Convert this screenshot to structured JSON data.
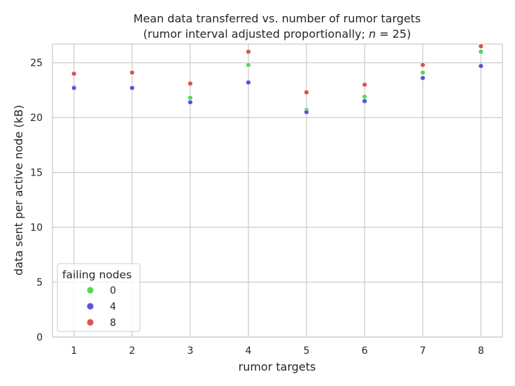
{
  "chart_data": {
    "type": "scatter",
    "title_line1": "Mean data transferred vs. number of rumor targets",
    "title_line2_pre": "(rumor interval adjusted proportionally; ",
    "title_line2_var": "n",
    "title_line2_post": " = 25)",
    "xlabel": "rumor targets",
    "ylabel": "data sent per active node (kB)",
    "xlim": [
      0.63,
      8.37
    ],
    "ylim": [
      0,
      26.7
    ],
    "x_ticks": [
      1,
      2,
      3,
      4,
      5,
      6,
      7,
      8
    ],
    "y_ticks": [
      0,
      5,
      10,
      15,
      20,
      25
    ],
    "grid": true,
    "legend": {
      "title": "failing nodes",
      "placement": "lower-left"
    },
    "x": [
      1,
      2,
      3,
      4,
      5,
      6,
      7,
      8
    ],
    "series": [
      {
        "name": "0",
        "color": "#53d95a",
        "values": [
          22.8,
          22.7,
          21.8,
          24.8,
          20.7,
          21.9,
          24.1,
          26.0
        ]
      },
      {
        "name": "4",
        "color": "#5a54d9",
        "values": [
          22.7,
          22.7,
          21.4,
          23.2,
          20.5,
          21.5,
          23.6,
          24.7
        ]
      },
      {
        "name": "8",
        "color": "#d95454",
        "values": [
          24.0,
          24.1,
          23.1,
          26.0,
          22.3,
          23.0,
          24.8,
          26.5
        ]
      }
    ]
  }
}
